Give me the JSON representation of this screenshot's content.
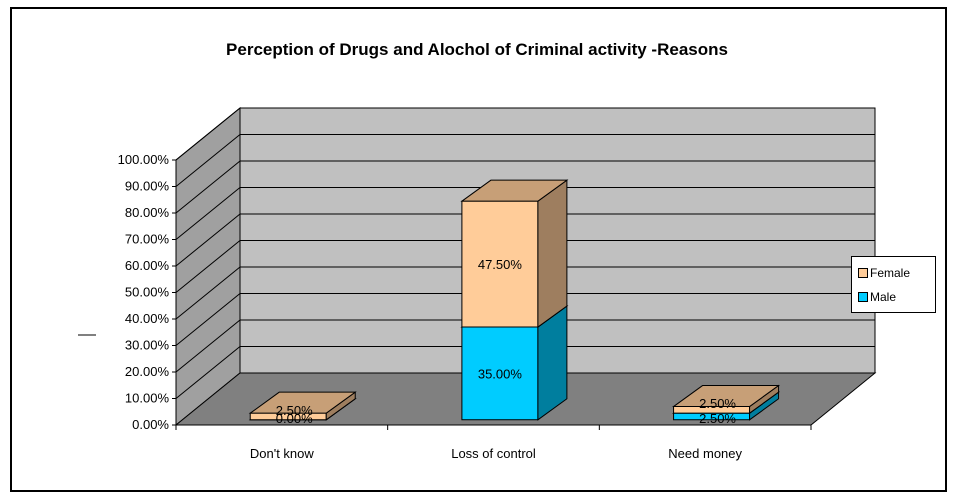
{
  "chart_data": {
    "type": "bar",
    "stacked": true,
    "three_d": true,
    "title": "Perception of Drugs and Alochol of Criminal activity -Reasons",
    "categories": [
      "Don't know",
      "Loss of control",
      "Need money"
    ],
    "series": [
      {
        "name": "Male",
        "values": [
          0.0,
          35.0,
          2.5
        ],
        "color": "#00CCFF",
        "labels": [
          "0.00%",
          "35.00%",
          "2.50%"
        ]
      },
      {
        "name": "Female",
        "values": [
          2.5,
          47.5,
          2.5
        ],
        "color": "#FFCC99",
        "labels": [
          "2.50%",
          "47.50%",
          "2.50%"
        ]
      }
    ],
    "ylim": [
      0,
      100
    ],
    "yticks": [
      "0.00%",
      "10.00%",
      "20.00%",
      "30.00%",
      "40.00%",
      "50.00%",
      "60.00%",
      "70.00%",
      "80.00%",
      "90.00%",
      "100.00%"
    ],
    "grid": true,
    "legend_position": "right",
    "colors": {
      "wall": "#C0C0C0",
      "floor": "#808080",
      "side_wall": "#A0A0A0"
    }
  }
}
